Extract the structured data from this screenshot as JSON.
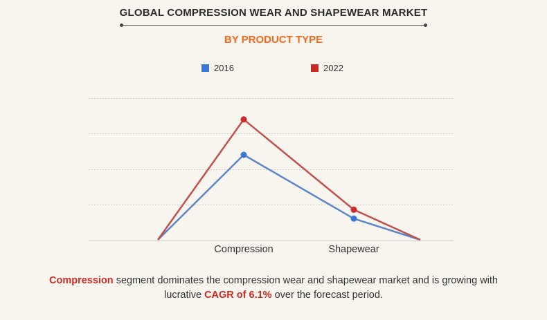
{
  "header": {
    "title": "GLOBAL COMPRESSION WEAR AND SHAPEWEAR MARKET",
    "subtitle": "BY PRODUCT TYPE"
  },
  "colors": {
    "series_2016": "#3a78d6",
    "series_2022": "#cc2a27",
    "line_2016": "#5b86c9",
    "line_2022": "#c0504d",
    "subtitle": "#ef6a1f",
    "highlight": "#cc2a27"
  },
  "chart_data": {
    "type": "line",
    "title": "GLOBAL COMPRESSION WEAR AND SHAPEWEAR MARKET",
    "subtitle": "BY PRODUCT TYPE",
    "categories": [
      "",
      "Compression",
      "Shapewear",
      ""
    ],
    "series": [
      {
        "name": "2016",
        "values": [
          0,
          2.4,
          0.6,
          0
        ]
      },
      {
        "name": "2022",
        "values": [
          0,
          3.4,
          0.85,
          0
        ]
      }
    ],
    "xlabel": "",
    "ylabel": "",
    "ylim": [
      0,
      4
    ],
    "grid": true,
    "legend": "top-center"
  },
  "caption": {
    "part1": "Compression",
    "part2": " segment dominates the compression wear and shapewear market and is growing with lucrative ",
    "part3": "CAGR of 6.1%",
    "part4": " over the forecast period."
  }
}
